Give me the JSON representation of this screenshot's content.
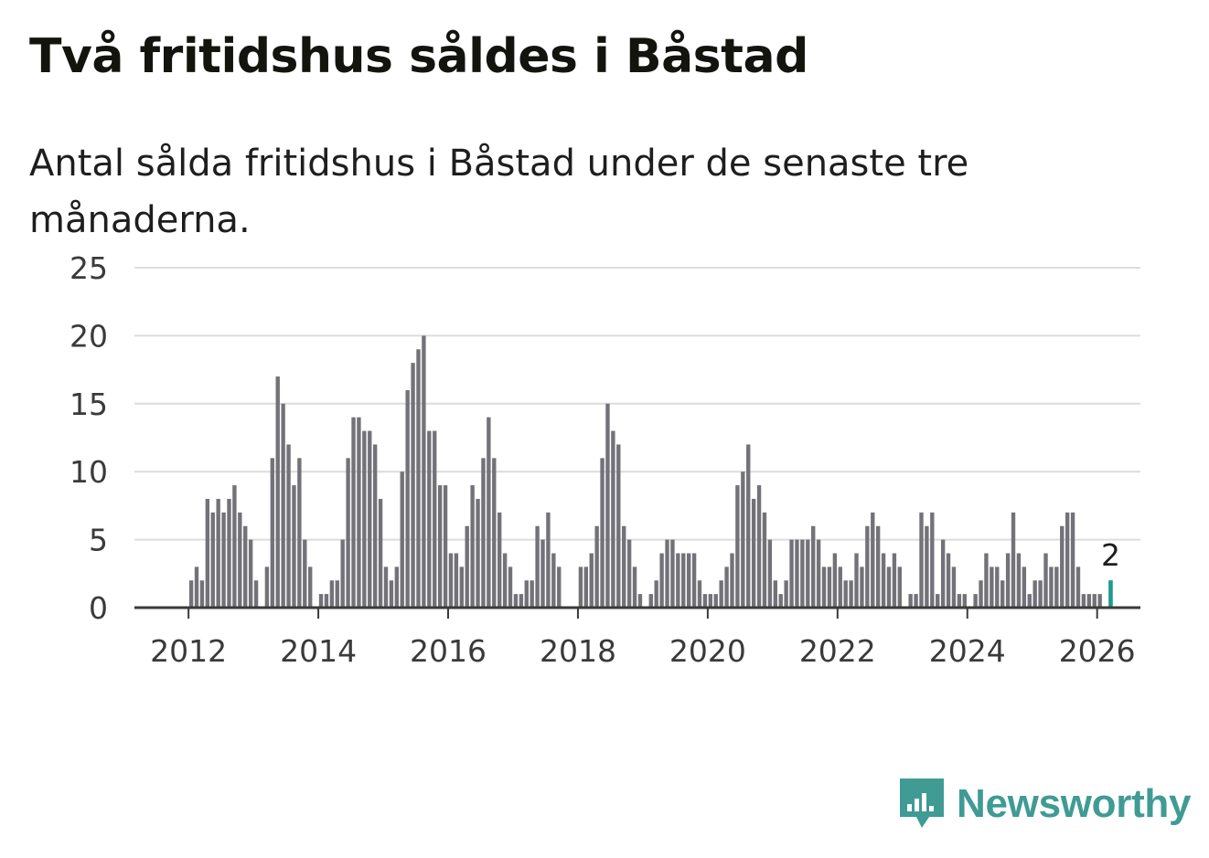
{
  "header": {
    "title": "Två fritidshus såldes i Båstad",
    "subtitle": "Antal sålda fritidshus i Båstad under de senaste tre månaderna."
  },
  "colors": {
    "bar": "#737279",
    "highlight": "#1d9a8e",
    "grid": "#dcdcdc",
    "axis": "#3a3a3a",
    "brand": "#3f9b94"
  },
  "brand": {
    "name": "Newsworthy",
    "icon": "chart-bubble-icon"
  },
  "chart_data": {
    "type": "bar",
    "title": "Två fritidshus såldes i Båstad",
    "subtitle": "Antal sålda fritidshus i Båstad under de senaste tre månaderna.",
    "xlabel": "",
    "ylabel": "",
    "ylim": [
      0,
      25
    ],
    "yticks": [
      0,
      5,
      10,
      15,
      20,
      25
    ],
    "xticks": [
      "2012",
      "2014",
      "2016",
      "2018",
      "2020",
      "2022",
      "2024",
      "2026"
    ],
    "x_range": [
      "2011-03",
      "2026-09"
    ],
    "grid": true,
    "legend": "none",
    "start_month": "2012-01",
    "values": [
      2,
      3,
      2,
      8,
      7,
      8,
      7,
      8,
      9,
      7,
      6,
      5,
      2,
      0,
      3,
      11,
      17,
      15,
      12,
      9,
      11,
      5,
      3,
      0,
      1,
      1,
      2,
      2,
      5,
      11,
      14,
      14,
      13,
      13,
      12,
      8,
      3,
      2,
      3,
      10,
      16,
      18,
      19,
      20,
      13,
      13,
      9,
      9,
      4,
      4,
      3,
      6,
      9,
      8,
      11,
      14,
      11,
      7,
      4,
      3,
      1,
      1,
      2,
      2,
      6,
      5,
      7,
      4,
      3,
      0,
      0,
      0,
      3,
      3,
      4,
      6,
      11,
      15,
      13,
      12,
      6,
      5,
      3,
      1,
      0,
      1,
      2,
      4,
      5,
      5,
      4,
      4,
      4,
      4,
      2,
      1,
      1,
      1,
      2,
      3,
      4,
      9,
      10,
      12,
      8,
      9,
      7,
      5,
      2,
      1,
      2,
      5,
      5,
      5,
      5,
      6,
      5,
      3,
      3,
      4,
      3,
      2,
      2,
      4,
      3,
      6,
      7,
      6,
      4,
      3,
      4,
      3,
      0,
      1,
      1,
      7,
      6,
      7,
      1,
      5,
      4,
      3,
      1,
      1,
      0,
      1,
      2,
      4,
      3,
      3,
      2,
      4,
      7,
      4,
      3,
      1,
      2,
      2,
      4,
      3,
      3,
      6,
      7,
      7,
      3,
      1,
      1,
      1,
      1,
      0,
      2
    ],
    "highlight": {
      "month": "2026-03",
      "value": 2,
      "label": "2"
    }
  }
}
